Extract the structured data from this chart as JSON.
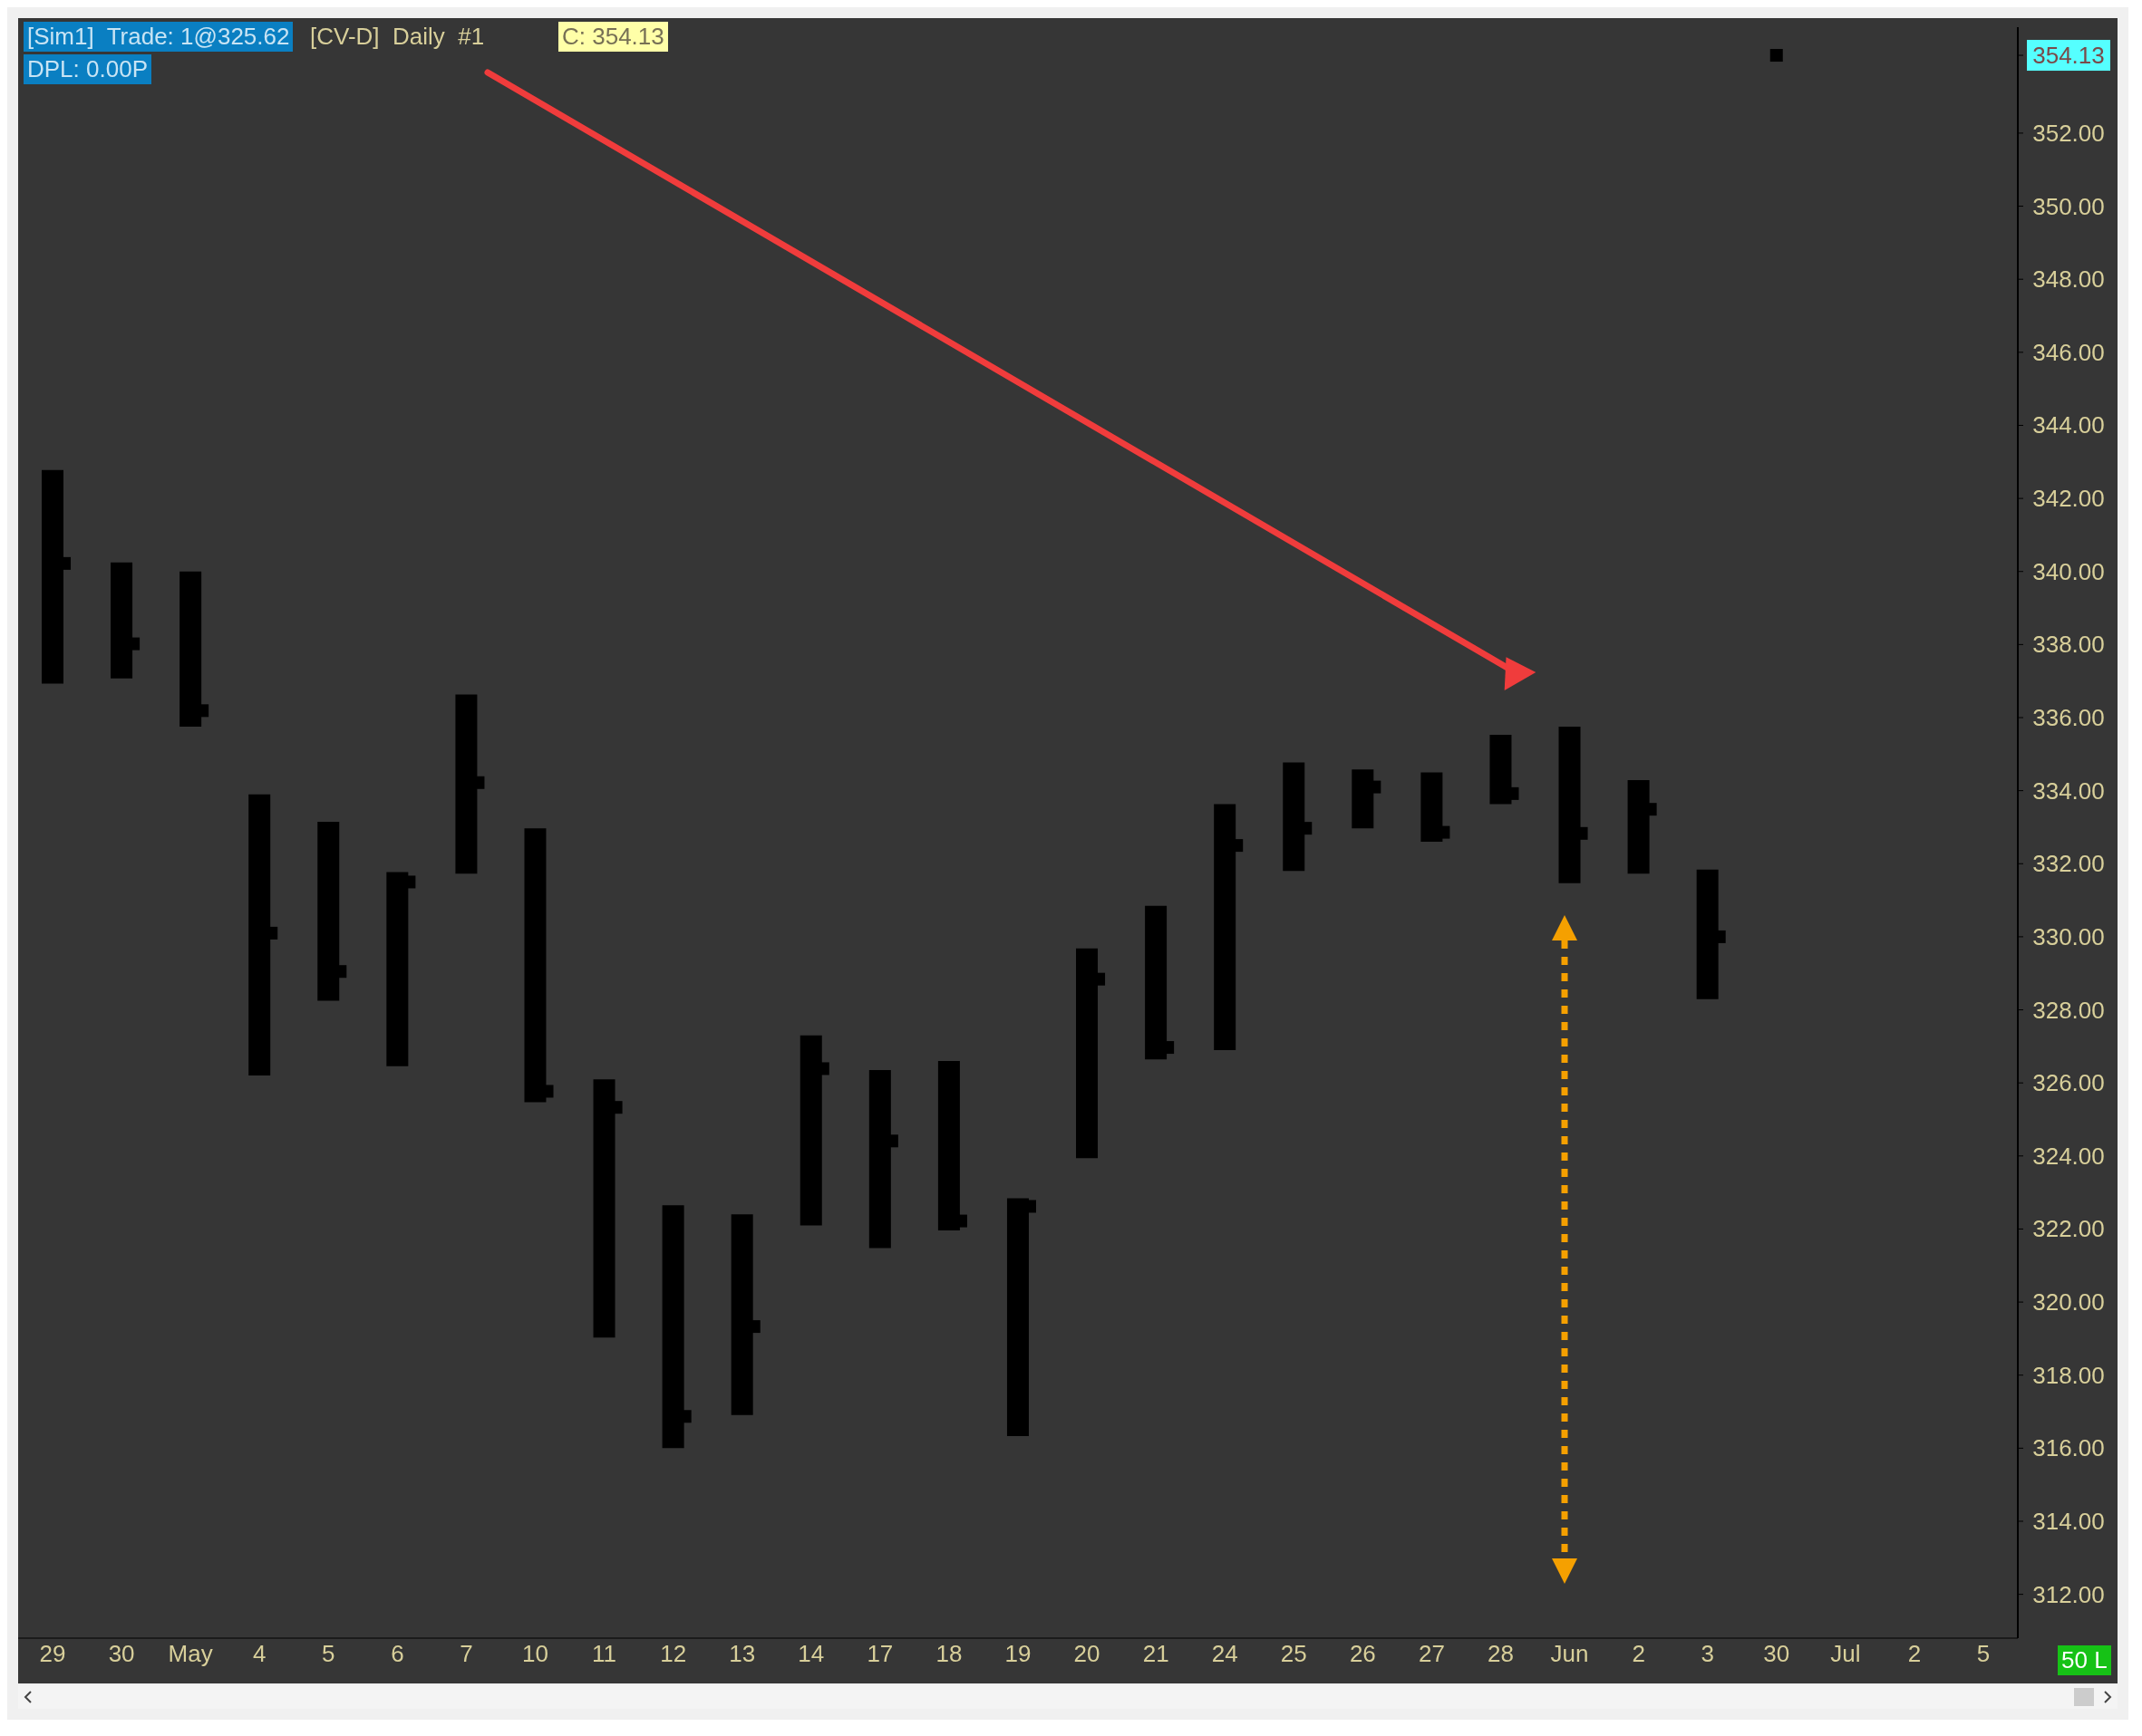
{
  "chart_data": {
    "type": "bar",
    "categories": [
      "29",
      "30",
      "May",
      "4",
      "5",
      "6",
      "7",
      "10",
      "11",
      "12",
      "13",
      "14",
      "17",
      "18",
      "19",
      "20",
      "21",
      "24",
      "25",
      "26",
      "27",
      "28",
      "Jun",
      "2",
      "3",
      "30",
      "Jul",
      "2",
      "5"
    ],
    "series": [
      {
        "color": "#000000",
        "base": [
          336.93,
          337.07,
          335.75,
          326.2,
          328.25,
          326.46,
          331.73,
          325.47,
          319.03,
          316.0,
          316.91,
          322.1,
          321.48,
          321.96,
          316.33,
          323.94,
          326.64,
          326.9,
          331.8,
          332.97,
          332.6,
          333.63,
          331.47,
          331.73,
          328.29,
          null,
          null,
          null,
          null
        ],
        "values": [
          5.85,
          3.18,
          4.25,
          7.7,
          4.9,
          5.31,
          4.9,
          7.5,
          7.07,
          6.65,
          5.49,
          5.2,
          4.87,
          4.64,
          6.51,
          5.74,
          4.21,
          6.73,
          2.97,
          1.61,
          1.9,
          1.9,
          4.28,
          2.56,
          3.55,
          null,
          null,
          null,
          null
        ]
      },
      {
        "type": "scatter",
        "color": "#000000",
        "marker": "square",
        "values": [
          340.22,
          338.02,
          336.19,
          330.1,
          329.05,
          331.5,
          334.22,
          325.77,
          325.33,
          316.87,
          319.33,
          326.39,
          324.41,
          322.22,
          322.62,
          328.84,
          326.97,
          332.5,
          332.97,
          334.1,
          332.86,
          333.92,
          332.83,
          333.49,
          330.0,
          354.13,
          null,
          null,
          null
        ]
      }
    ],
    "ylim": [
      310.8,
      354.9
    ],
    "yticks": [
      {
        "value": 312,
        "label": "312.00"
      },
      {
        "value": 314,
        "label": "314.00"
      },
      {
        "value": 316,
        "label": "316.00"
      },
      {
        "value": 318,
        "label": "318.00"
      },
      {
        "value": 320,
        "label": "320.00"
      },
      {
        "value": 322,
        "label": "322.00"
      },
      {
        "value": 324,
        "label": "324.00"
      },
      {
        "value": 326,
        "label": "326.00"
      },
      {
        "value": 328,
        "label": "328.00"
      },
      {
        "value": 330,
        "label": "330.00"
      },
      {
        "value": 332,
        "label": "332.00"
      },
      {
        "value": 334,
        "label": "334.00"
      },
      {
        "value": 336,
        "label": "336.00"
      },
      {
        "value": 338,
        "label": "338.00"
      },
      {
        "value": 340,
        "label": "340.00"
      },
      {
        "value": 342,
        "label": "342.00"
      },
      {
        "value": 344,
        "label": "344.00"
      },
      {
        "value": 346,
        "label": "346.00"
      },
      {
        "value": 348,
        "label": "348.00"
      },
      {
        "value": 350,
        "label": "350.00"
      },
      {
        "value": 352,
        "label": "352.00"
      },
      {
        "value": 354.13,
        "label": "354.13"
      }
    ],
    "annotations": [
      "[Sim1]  Trade: 1@325.62",
      "[CV-D]  Daily  #1",
      "C: 354.13",
      "DPL: 0.00P",
      "50 L"
    ]
  }
}
